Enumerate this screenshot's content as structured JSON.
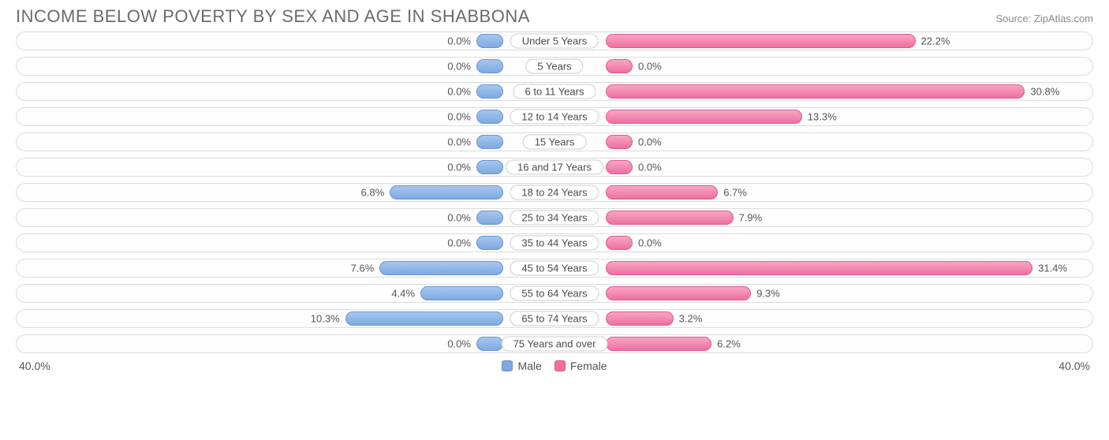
{
  "title": "INCOME BELOW POVERTY BY SEX AND AGE IN SHABBONA",
  "source": "Source: ZipAtlas.com",
  "chart": {
    "type": "diverging-bar",
    "axis_max": 40.0,
    "axis_label_left": "40.0%",
    "axis_label_right": "40.0%",
    "min_bar_pct": 5.0,
    "colors": {
      "male_fill_top": "#a6c6ee",
      "male_fill_bottom": "#7fa9e0",
      "male_border": "#6a96d4",
      "female_fill_top": "#f7a6c4",
      "female_fill_bottom": "#ee6fa0",
      "female_border": "#e05a8e",
      "row_bg": "#fdfdfd",
      "row_border": "#dcdcdc",
      "pill_bg": "#ffffff",
      "pill_border": "#cfcfcf",
      "text": "#565656",
      "title": "#6b6b6b",
      "source": "#8a8a8a"
    },
    "legend": [
      {
        "label": "Male",
        "color": "#7fa9e0"
      },
      {
        "label": "Female",
        "color": "#ee6fa0"
      }
    ],
    "rows": [
      {
        "label": "Under 5 Years",
        "male": 0.0,
        "female": 22.2,
        "male_label": "0.0%",
        "female_label": "22.2%"
      },
      {
        "label": "5 Years",
        "male": 0.0,
        "female": 0.0,
        "male_label": "0.0%",
        "female_label": "0.0%"
      },
      {
        "label": "6 to 11 Years",
        "male": 0.0,
        "female": 30.8,
        "male_label": "0.0%",
        "female_label": "30.8%"
      },
      {
        "label": "12 to 14 Years",
        "male": 0.0,
        "female": 13.3,
        "male_label": "0.0%",
        "female_label": "13.3%"
      },
      {
        "label": "15 Years",
        "male": 0.0,
        "female": 0.0,
        "male_label": "0.0%",
        "female_label": "0.0%"
      },
      {
        "label": "16 and 17 Years",
        "male": 0.0,
        "female": 0.0,
        "male_label": "0.0%",
        "female_label": "0.0%"
      },
      {
        "label": "18 to 24 Years",
        "male": 6.8,
        "female": 6.7,
        "male_label": "6.8%",
        "female_label": "6.7%"
      },
      {
        "label": "25 to 34 Years",
        "male": 0.0,
        "female": 7.9,
        "male_label": "0.0%",
        "female_label": "7.9%"
      },
      {
        "label": "35 to 44 Years",
        "male": 0.0,
        "female": 0.0,
        "male_label": "0.0%",
        "female_label": "0.0%"
      },
      {
        "label": "45 to 54 Years",
        "male": 7.6,
        "female": 31.4,
        "male_label": "7.6%",
        "female_label": "31.4%"
      },
      {
        "label": "55 to 64 Years",
        "male": 4.4,
        "female": 9.3,
        "male_label": "4.4%",
        "female_label": "9.3%"
      },
      {
        "label": "65 to 74 Years",
        "male": 10.3,
        "female": 3.2,
        "male_label": "10.3%",
        "female_label": "3.2%"
      },
      {
        "label": "75 Years and over",
        "male": 0.0,
        "female": 6.2,
        "male_label": "0.0%",
        "female_label": "6.2%"
      }
    ]
  }
}
